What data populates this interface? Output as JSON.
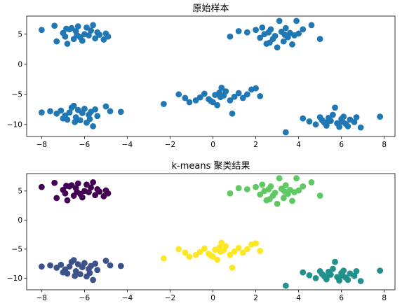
{
  "chart_data": [
    {
      "type": "scatter",
      "title": "原始样本",
      "xlabel": "",
      "ylabel": "",
      "xlim": [
        -8.7,
        8.5
      ],
      "ylim": [
        -12.0,
        8.0
      ],
      "xticks": [
        -8,
        -6,
        -4,
        -2,
        0,
        2,
        4,
        6,
        8
      ],
      "yticks": [
        5,
        0,
        -5,
        -10
      ],
      "grid": false,
      "legend": "none",
      "colors": {
        "point": "#1f77b4"
      },
      "series": [
        {
          "points": [
            [
              -8.0,
              5.7
            ],
            [
              -7.4,
              6.4
            ],
            [
              -7.3,
              3.8
            ],
            [
              -7.0,
              5.2
            ],
            [
              -6.9,
              4.6
            ],
            [
              -6.8,
              3.4
            ],
            [
              -6.7,
              5.8
            ],
            [
              -6.6,
              6.0
            ],
            [
              -6.5,
              4.2
            ],
            [
              -6.4,
              5.5
            ],
            [
              -6.3,
              6.3
            ],
            [
              -6.2,
              4.5
            ],
            [
              -6.1,
              3.9
            ],
            [
              -6.0,
              5.0
            ],
            [
              -5.9,
              6.1
            ],
            [
              -5.8,
              4.8
            ],
            [
              -5.7,
              5.6
            ],
            [
              -5.6,
              6.5
            ],
            [
              -5.5,
              4.3
            ],
            [
              -5.4,
              5.3
            ],
            [
              -5.3,
              4.9
            ],
            [
              -5.1,
              4.1
            ],
            [
              -5.0,
              5.1
            ],
            [
              -4.9,
              4.6
            ],
            [
              -6.85,
              5.9
            ],
            [
              -6.35,
              4.85
            ],
            [
              0.8,
              4.6
            ],
            [
              1.2,
              5.5
            ],
            [
              1.6,
              5.3
            ],
            [
              2.0,
              5.7
            ],
            [
              2.2,
              4.4
            ],
            [
              2.4,
              5.0
            ],
            [
              2.5,
              3.4
            ],
            [
              2.6,
              5.3
            ],
            [
              2.7,
              5.8
            ],
            [
              2.8,
              4.2
            ],
            [
              2.9,
              4.7
            ],
            [
              3.0,
              2.8
            ],
            [
              3.1,
              7.2
            ],
            [
              3.2,
              5.4
            ],
            [
              3.3,
              3.8
            ],
            [
              3.4,
              6.0
            ],
            [
              3.5,
              4.5
            ],
            [
              3.6,
              5.2
            ],
            [
              3.7,
              3.3
            ],
            [
              3.8,
              4.8
            ],
            [
              3.9,
              7.2
            ],
            [
              4.0,
              5.1
            ],
            [
              4.2,
              5.8
            ],
            [
              4.6,
              6.5
            ],
            [
              5.0,
              4.2
            ],
            [
              2.3,
              6.1
            ],
            [
              2.65,
              3.6
            ],
            [
              3.35,
              4.9
            ],
            [
              -8.0,
              -8.0
            ],
            [
              -7.6,
              -7.8
            ],
            [
              -7.3,
              -8.2
            ],
            [
              -7.1,
              -7.7
            ],
            [
              -6.9,
              -8.5
            ],
            [
              -6.8,
              -9.2
            ],
            [
              -6.7,
              -8.0
            ],
            [
              -6.6,
              -7.2
            ],
            [
              -6.5,
              -6.9
            ],
            [
              -6.4,
              -8.8
            ],
            [
              -6.3,
              -7.6
            ],
            [
              -6.2,
              -9.3
            ],
            [
              -6.1,
              -8.1
            ],
            [
              -6.0,
              -7.4
            ],
            [
              -5.9,
              -9.7
            ],
            [
              -5.8,
              -8.4
            ],
            [
              -5.7,
              -7.9
            ],
            [
              -5.6,
              -10.3
            ],
            [
              -5.5,
              -7.5
            ],
            [
              -5.4,
              -8.6
            ],
            [
              -5.0,
              -7.0
            ],
            [
              -4.8,
              -7.8
            ],
            [
              -4.3,
              -7.9
            ],
            [
              -7.0,
              -9.0
            ],
            [
              -6.45,
              -9.6
            ],
            [
              -5.75,
              -9.1
            ],
            [
              -2.3,
              -6.6
            ],
            [
              -1.6,
              -5.0
            ],
            [
              -1.3,
              -5.6
            ],
            [
              -1.1,
              -6.3
            ],
            [
              -0.8,
              -6.0
            ],
            [
              -0.6,
              -5.5
            ],
            [
              -0.4,
              -4.9
            ],
            [
              -0.2,
              -5.8
            ],
            [
              0.0,
              -6.3
            ],
            [
              0.1,
              -5.1
            ],
            [
              0.2,
              -6.8
            ],
            [
              0.3,
              -4.7
            ],
            [
              0.4,
              -3.9
            ],
            [
              0.5,
              -5.2
            ],
            [
              0.6,
              -4.5
            ],
            [
              0.8,
              -6.0
            ],
            [
              0.9,
              -8.2
            ],
            [
              1.0,
              -5.4
            ],
            [
              1.2,
              -4.8
            ],
            [
              1.4,
              -5.6
            ],
            [
              1.6,
              -5.0
            ],
            [
              1.8,
              -4.2
            ],
            [
              2.0,
              -4.0
            ],
            [
              2.2,
              -5.3
            ],
            [
              -0.1,
              -6.1
            ],
            [
              0.35,
              -5.45
            ],
            [
              3.4,
              -11.3
            ],
            [
              4.2,
              -9.0
            ],
            [
              4.5,
              -9.5
            ],
            [
              4.8,
              -10.0
            ],
            [
              5.0,
              -8.8
            ],
            [
              5.1,
              -9.3
            ],
            [
              5.2,
              -9.7
            ],
            [
              5.3,
              -10.2
            ],
            [
              5.4,
              -8.9
            ],
            [
              5.5,
              -9.4
            ],
            [
              5.6,
              -8.4
            ],
            [
              5.7,
              -7.2
            ],
            [
              5.8,
              -9.8
            ],
            [
              5.9,
              -10.4
            ],
            [
              6.0,
              -9.1
            ],
            [
              6.1,
              -8.7
            ],
            [
              6.2,
              -9.9
            ],
            [
              6.3,
              -10.3
            ],
            [
              6.4,
              -9.2
            ],
            [
              6.6,
              -9.6
            ],
            [
              6.7,
              -8.8
            ],
            [
              6.9,
              -10.5
            ],
            [
              7.8,
              -8.7
            ],
            [
              5.35,
              -9.55
            ],
            [
              6.05,
              -9.55
            ]
          ]
        }
      ]
    },
    {
      "type": "scatter",
      "title": "k-means 聚类结果",
      "xlabel": "",
      "ylabel": "",
      "xlim": [
        -8.7,
        8.5
      ],
      "ylim": [
        -12.0,
        8.0
      ],
      "xticks": [
        -8,
        -6,
        -4,
        -2,
        0,
        2,
        4,
        6,
        8
      ],
      "yticks": [
        5,
        0,
        -5,
        -10
      ],
      "grid": false,
      "legend": "none",
      "series": [
        {
          "color": "#440154",
          "points": [
            [
              -8.0,
              5.7
            ],
            [
              -7.4,
              6.4
            ],
            [
              -7.3,
              3.8
            ],
            [
              -7.0,
              5.2
            ],
            [
              -6.9,
              4.6
            ],
            [
              -6.8,
              3.4
            ],
            [
              -6.7,
              5.8
            ],
            [
              -6.6,
              6.0
            ],
            [
              -6.5,
              4.2
            ],
            [
              -6.4,
              5.5
            ],
            [
              -6.3,
              6.3
            ],
            [
              -6.2,
              4.5
            ],
            [
              -6.1,
              3.9
            ],
            [
              -6.0,
              5.0
            ],
            [
              -5.9,
              6.1
            ],
            [
              -5.8,
              4.8
            ],
            [
              -5.7,
              5.6
            ],
            [
              -5.6,
              6.5
            ],
            [
              -5.5,
              4.3
            ],
            [
              -5.4,
              5.3
            ],
            [
              -5.3,
              4.9
            ],
            [
              -5.1,
              4.1
            ],
            [
              -5.0,
              5.1
            ],
            [
              -4.9,
              4.6
            ],
            [
              -6.85,
              5.9
            ],
            [
              -6.35,
              4.85
            ]
          ]
        },
        {
          "color": "#5ec962",
          "points": [
            [
              0.8,
              4.6
            ],
            [
              1.2,
              5.5
            ],
            [
              1.6,
              5.3
            ],
            [
              2.0,
              5.7
            ],
            [
              2.2,
              4.4
            ],
            [
              2.4,
              5.0
            ],
            [
              2.5,
              3.4
            ],
            [
              2.6,
              5.3
            ],
            [
              2.7,
              5.8
            ],
            [
              2.8,
              4.2
            ],
            [
              2.9,
              4.7
            ],
            [
              3.0,
              2.8
            ],
            [
              3.1,
              7.2
            ],
            [
              3.2,
              5.4
            ],
            [
              3.3,
              3.8
            ],
            [
              3.4,
              6.0
            ],
            [
              3.5,
              4.5
            ],
            [
              3.6,
              5.2
            ],
            [
              3.7,
              3.3
            ],
            [
              3.8,
              4.8
            ],
            [
              3.9,
              7.2
            ],
            [
              4.0,
              5.1
            ],
            [
              4.2,
              5.8
            ],
            [
              4.6,
              6.5
            ],
            [
              5.0,
              4.2
            ],
            [
              2.3,
              6.1
            ],
            [
              2.65,
              3.6
            ],
            [
              3.35,
              4.9
            ]
          ]
        },
        {
          "color": "#3b528b",
          "points": [
            [
              -8.0,
              -8.0
            ],
            [
              -7.6,
              -7.8
            ],
            [
              -7.3,
              -8.2
            ],
            [
              -7.1,
              -7.7
            ],
            [
              -6.9,
              -8.5
            ],
            [
              -6.8,
              -9.2
            ],
            [
              -6.7,
              -8.0
            ],
            [
              -6.6,
              -7.2
            ],
            [
              -6.5,
              -6.9
            ],
            [
              -6.4,
              -8.8
            ],
            [
              -6.3,
              -7.6
            ],
            [
              -6.2,
              -9.3
            ],
            [
              -6.1,
              -8.1
            ],
            [
              -6.0,
              -7.4
            ],
            [
              -5.9,
              -9.7
            ],
            [
              -5.8,
              -8.4
            ],
            [
              -5.7,
              -7.9
            ],
            [
              -5.6,
              -10.3
            ],
            [
              -5.5,
              -7.5
            ],
            [
              -5.4,
              -8.6
            ],
            [
              -5.0,
              -7.0
            ],
            [
              -4.8,
              -7.8
            ],
            [
              -4.3,
              -7.9
            ],
            [
              -7.0,
              -9.0
            ],
            [
              -6.45,
              -9.6
            ],
            [
              -5.75,
              -9.1
            ]
          ]
        },
        {
          "color": "#fde725",
          "points": [
            [
              -2.3,
              -6.6
            ],
            [
              -1.6,
              -5.0
            ],
            [
              -1.3,
              -5.6
            ],
            [
              -1.1,
              -6.3
            ],
            [
              -0.8,
              -6.0
            ],
            [
              -0.6,
              -5.5
            ],
            [
              -0.4,
              -4.9
            ],
            [
              -0.2,
              -5.8
            ],
            [
              0.0,
              -6.3
            ],
            [
              0.1,
              -5.1
            ],
            [
              0.2,
              -6.8
            ],
            [
              0.3,
              -4.7
            ],
            [
              0.4,
              -3.9
            ],
            [
              0.5,
              -5.2
            ],
            [
              0.6,
              -4.5
            ],
            [
              0.8,
              -6.0
            ],
            [
              0.9,
              -8.2
            ],
            [
              1.0,
              -5.4
            ],
            [
              1.2,
              -4.8
            ],
            [
              1.4,
              -5.6
            ],
            [
              1.6,
              -5.0
            ],
            [
              1.8,
              -4.2
            ],
            [
              2.0,
              -4.0
            ],
            [
              2.2,
              -5.3
            ],
            [
              -0.1,
              -6.1
            ],
            [
              0.35,
              -5.45
            ]
          ]
        },
        {
          "color": "#21918c",
          "points": [
            [
              3.4,
              -11.3
            ],
            [
              4.2,
              -9.0
            ],
            [
              4.5,
              -9.5
            ],
            [
              4.8,
              -10.0
            ],
            [
              5.0,
              -8.8
            ],
            [
              5.1,
              -9.3
            ],
            [
              5.2,
              -9.7
            ],
            [
              5.3,
              -10.2
            ],
            [
              5.4,
              -8.9
            ],
            [
              5.5,
              -9.4
            ],
            [
              5.6,
              -8.4
            ],
            [
              5.7,
              -7.2
            ],
            [
              5.8,
              -9.8
            ],
            [
              5.9,
              -10.4
            ],
            [
              6.0,
              -9.1
            ],
            [
              6.1,
              -8.7
            ],
            [
              6.2,
              -9.9
            ],
            [
              6.3,
              -10.3
            ],
            [
              6.4,
              -9.2
            ],
            [
              6.6,
              -9.6
            ],
            [
              6.7,
              -8.8
            ],
            [
              6.9,
              -10.5
            ],
            [
              7.8,
              -8.7
            ],
            [
              5.35,
              -9.55
            ],
            [
              6.05,
              -9.55
            ]
          ]
        }
      ]
    }
  ]
}
